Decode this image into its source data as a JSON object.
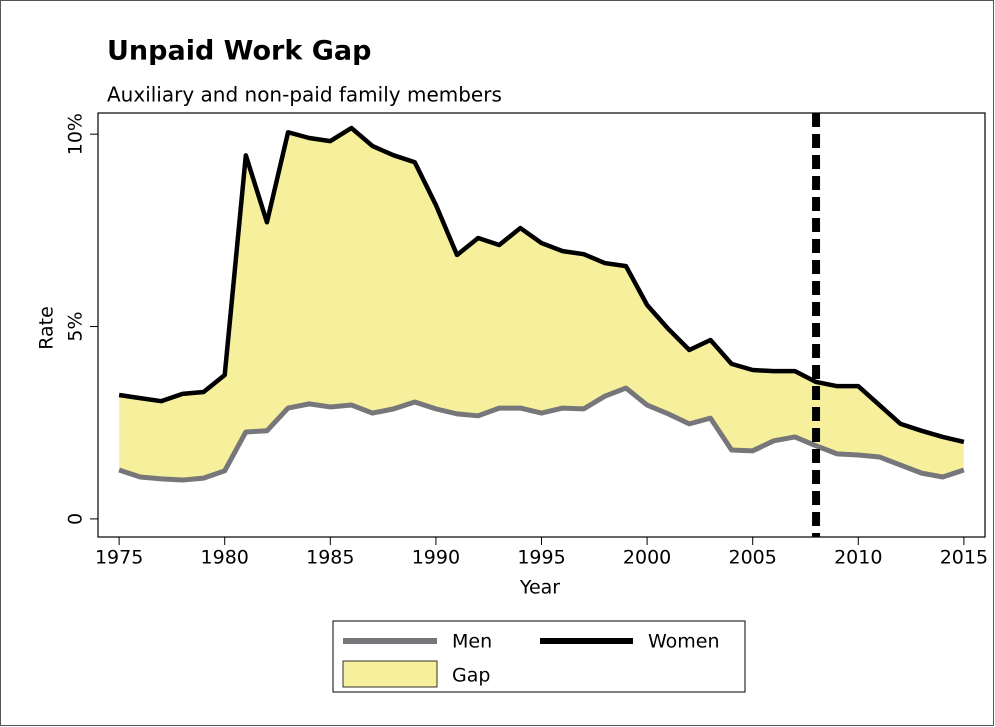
{
  "chart_data": {
    "type": "line",
    "title": "Unpaid Work Gap",
    "subtitle": "Auxiliary and non-paid family members",
    "xlabel": "Year",
    "ylabel": "Rate",
    "x": [
      1975,
      1976,
      1977,
      1978,
      1979,
      1980,
      1981,
      1982,
      1983,
      1984,
      1985,
      1986,
      1987,
      1988,
      1989,
      1990,
      1991,
      1992,
      1993,
      1994,
      1995,
      1996,
      1997,
      1998,
      1999,
      2000,
      2001,
      2002,
      2003,
      2004,
      2005,
      2006,
      2007,
      2008,
      2009,
      2010,
      2011,
      2012,
      2013,
      2014,
      2015
    ],
    "series": [
      {
        "name": "Men",
        "color": "#77777b",
        "values": [
          1.27,
          1.09,
          1.04,
          1.01,
          1.06,
          1.25,
          2.26,
          2.29,
          2.88,
          2.99,
          2.91,
          2.96,
          2.75,
          2.86,
          3.04,
          2.86,
          2.73,
          2.68,
          2.88,
          2.88,
          2.75,
          2.88,
          2.86,
          3.19,
          3.4,
          2.96,
          2.73,
          2.47,
          2.62,
          1.79,
          1.77,
          2.03,
          2.13,
          1.9,
          1.69,
          1.66,
          1.61,
          1.4,
          1.19,
          1.09,
          1.27
        ]
      },
      {
        "name": "Women",
        "color": "#000000",
        "values": [
          3.22,
          3.14,
          3.06,
          3.25,
          3.3,
          3.74,
          9.45,
          7.71,
          10.05,
          9.9,
          9.82,
          10.16,
          9.69,
          9.45,
          9.27,
          8.16,
          6.86,
          7.3,
          7.12,
          7.56,
          7.17,
          6.96,
          6.88,
          6.65,
          6.57,
          5.56,
          4.94,
          4.39,
          4.65,
          4.03,
          3.87,
          3.84,
          3.84,
          3.56,
          3.45,
          3.45,
          2.96,
          2.47,
          2.29,
          2.13,
          2.0
        ]
      }
    ],
    "area": {
      "name": "Gap",
      "color": "#f6f09c"
    },
    "reference_x": 2008,
    "xlim": [
      1974,
      2016
    ],
    "ylim": [
      -0.47,
      10.55
    ],
    "xticks": [
      1975,
      1980,
      1985,
      1990,
      1995,
      2000,
      2005,
      2010,
      2015
    ],
    "yticks": [
      0,
      {
        "value": 5,
        "label": "5%"
      },
      {
        "value": 10,
        "label": "10%"
      }
    ],
    "legend": "bottom"
  }
}
